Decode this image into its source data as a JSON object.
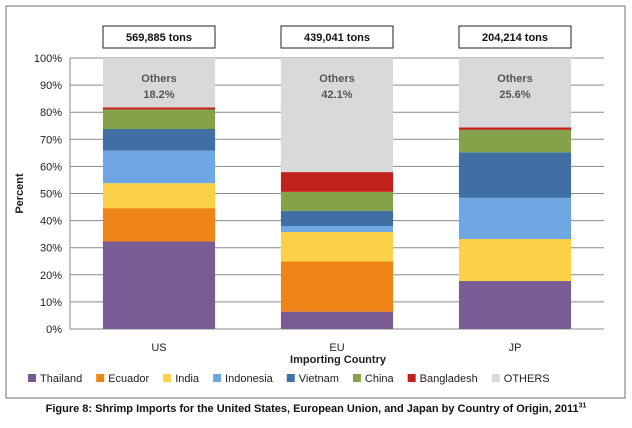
{
  "chart_data": {
    "type": "bar",
    "stacked": true,
    "categories": [
      "US",
      "EU",
      "JP"
    ],
    "series": [
      {
        "name": "Thailand",
        "color": "#7a5c94",
        "values": [
          32.3,
          6.4,
          17.7
        ]
      },
      {
        "name": "Ecuador",
        "color": "#ee8516",
        "values": [
          12.3,
          18.5,
          0.0
        ]
      },
      {
        "name": "India",
        "color": "#fbd148",
        "values": [
          9.2,
          10.9,
          15.5
        ]
      },
      {
        "name": "Indonesia",
        "color": "#6ea7e3",
        "values": [
          12.0,
          2.2,
          15.2
        ]
      },
      {
        "name": "Vietnam",
        "color": "#3f6fa3",
        "values": [
          8.0,
          5.6,
          16.8
        ]
      },
      {
        "name": "China",
        "color": "#85a24a",
        "values": [
          7.2,
          7.0,
          8.3
        ]
      },
      {
        "name": "Bangladesh",
        "color": "#c2211b",
        "values": [
          0.8,
          7.3,
          0.9
        ]
      },
      {
        "name": "OTHERS",
        "color": "#d9d9d9",
        "values": [
          18.2,
          42.1,
          25.6
        ]
      }
    ],
    "others_labels": [
      {
        "name": "Others",
        "value": "18.2%"
      },
      {
        "name": "Others",
        "value": "42.1%"
      },
      {
        "name": "Others",
        "value": "25.6%"
      }
    ],
    "totals": [
      "569,885 tons",
      "439,041 tons",
      "204,214 tons"
    ],
    "xlabel": "Importing Country",
    "ylabel": "Percent",
    "ylim": [
      0,
      100
    ],
    "yticks": [
      "0%",
      "10%",
      "20%",
      "30%",
      "40%",
      "50%",
      "60%",
      "70%",
      "80%",
      "90%",
      "100%"
    ],
    "grid": true,
    "legend_position": "bottom"
  },
  "caption": {
    "text": "Figure 8: Shrimp Imports for the United States, European Union, and Japan by Country of Origin, 2011",
    "superscript": "31"
  }
}
